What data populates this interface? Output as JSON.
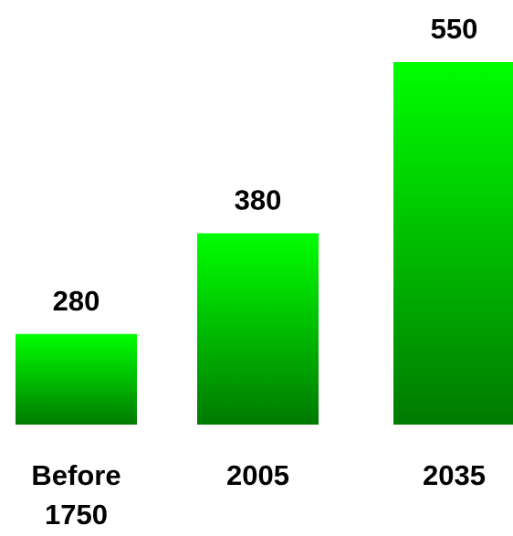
{
  "chart_data": {
    "type": "bar",
    "categories": [
      [
        "Before",
        "1750"
      ],
      [
        "2005"
      ],
      [
        "2035"
      ]
    ],
    "values": [
      280,
      380,
      550
    ],
    "data_labels": [
      "280",
      "380",
      "550"
    ],
    "title": "",
    "xlabel": "",
    "ylabel": "",
    "ylim": [
      190,
      550
    ],
    "grid": false,
    "legend": "none",
    "colors": {
      "bar_top": "#00ff00",
      "bar_bottom": "#007a00",
      "text": "#000000",
      "background": "#ffffff"
    }
  }
}
